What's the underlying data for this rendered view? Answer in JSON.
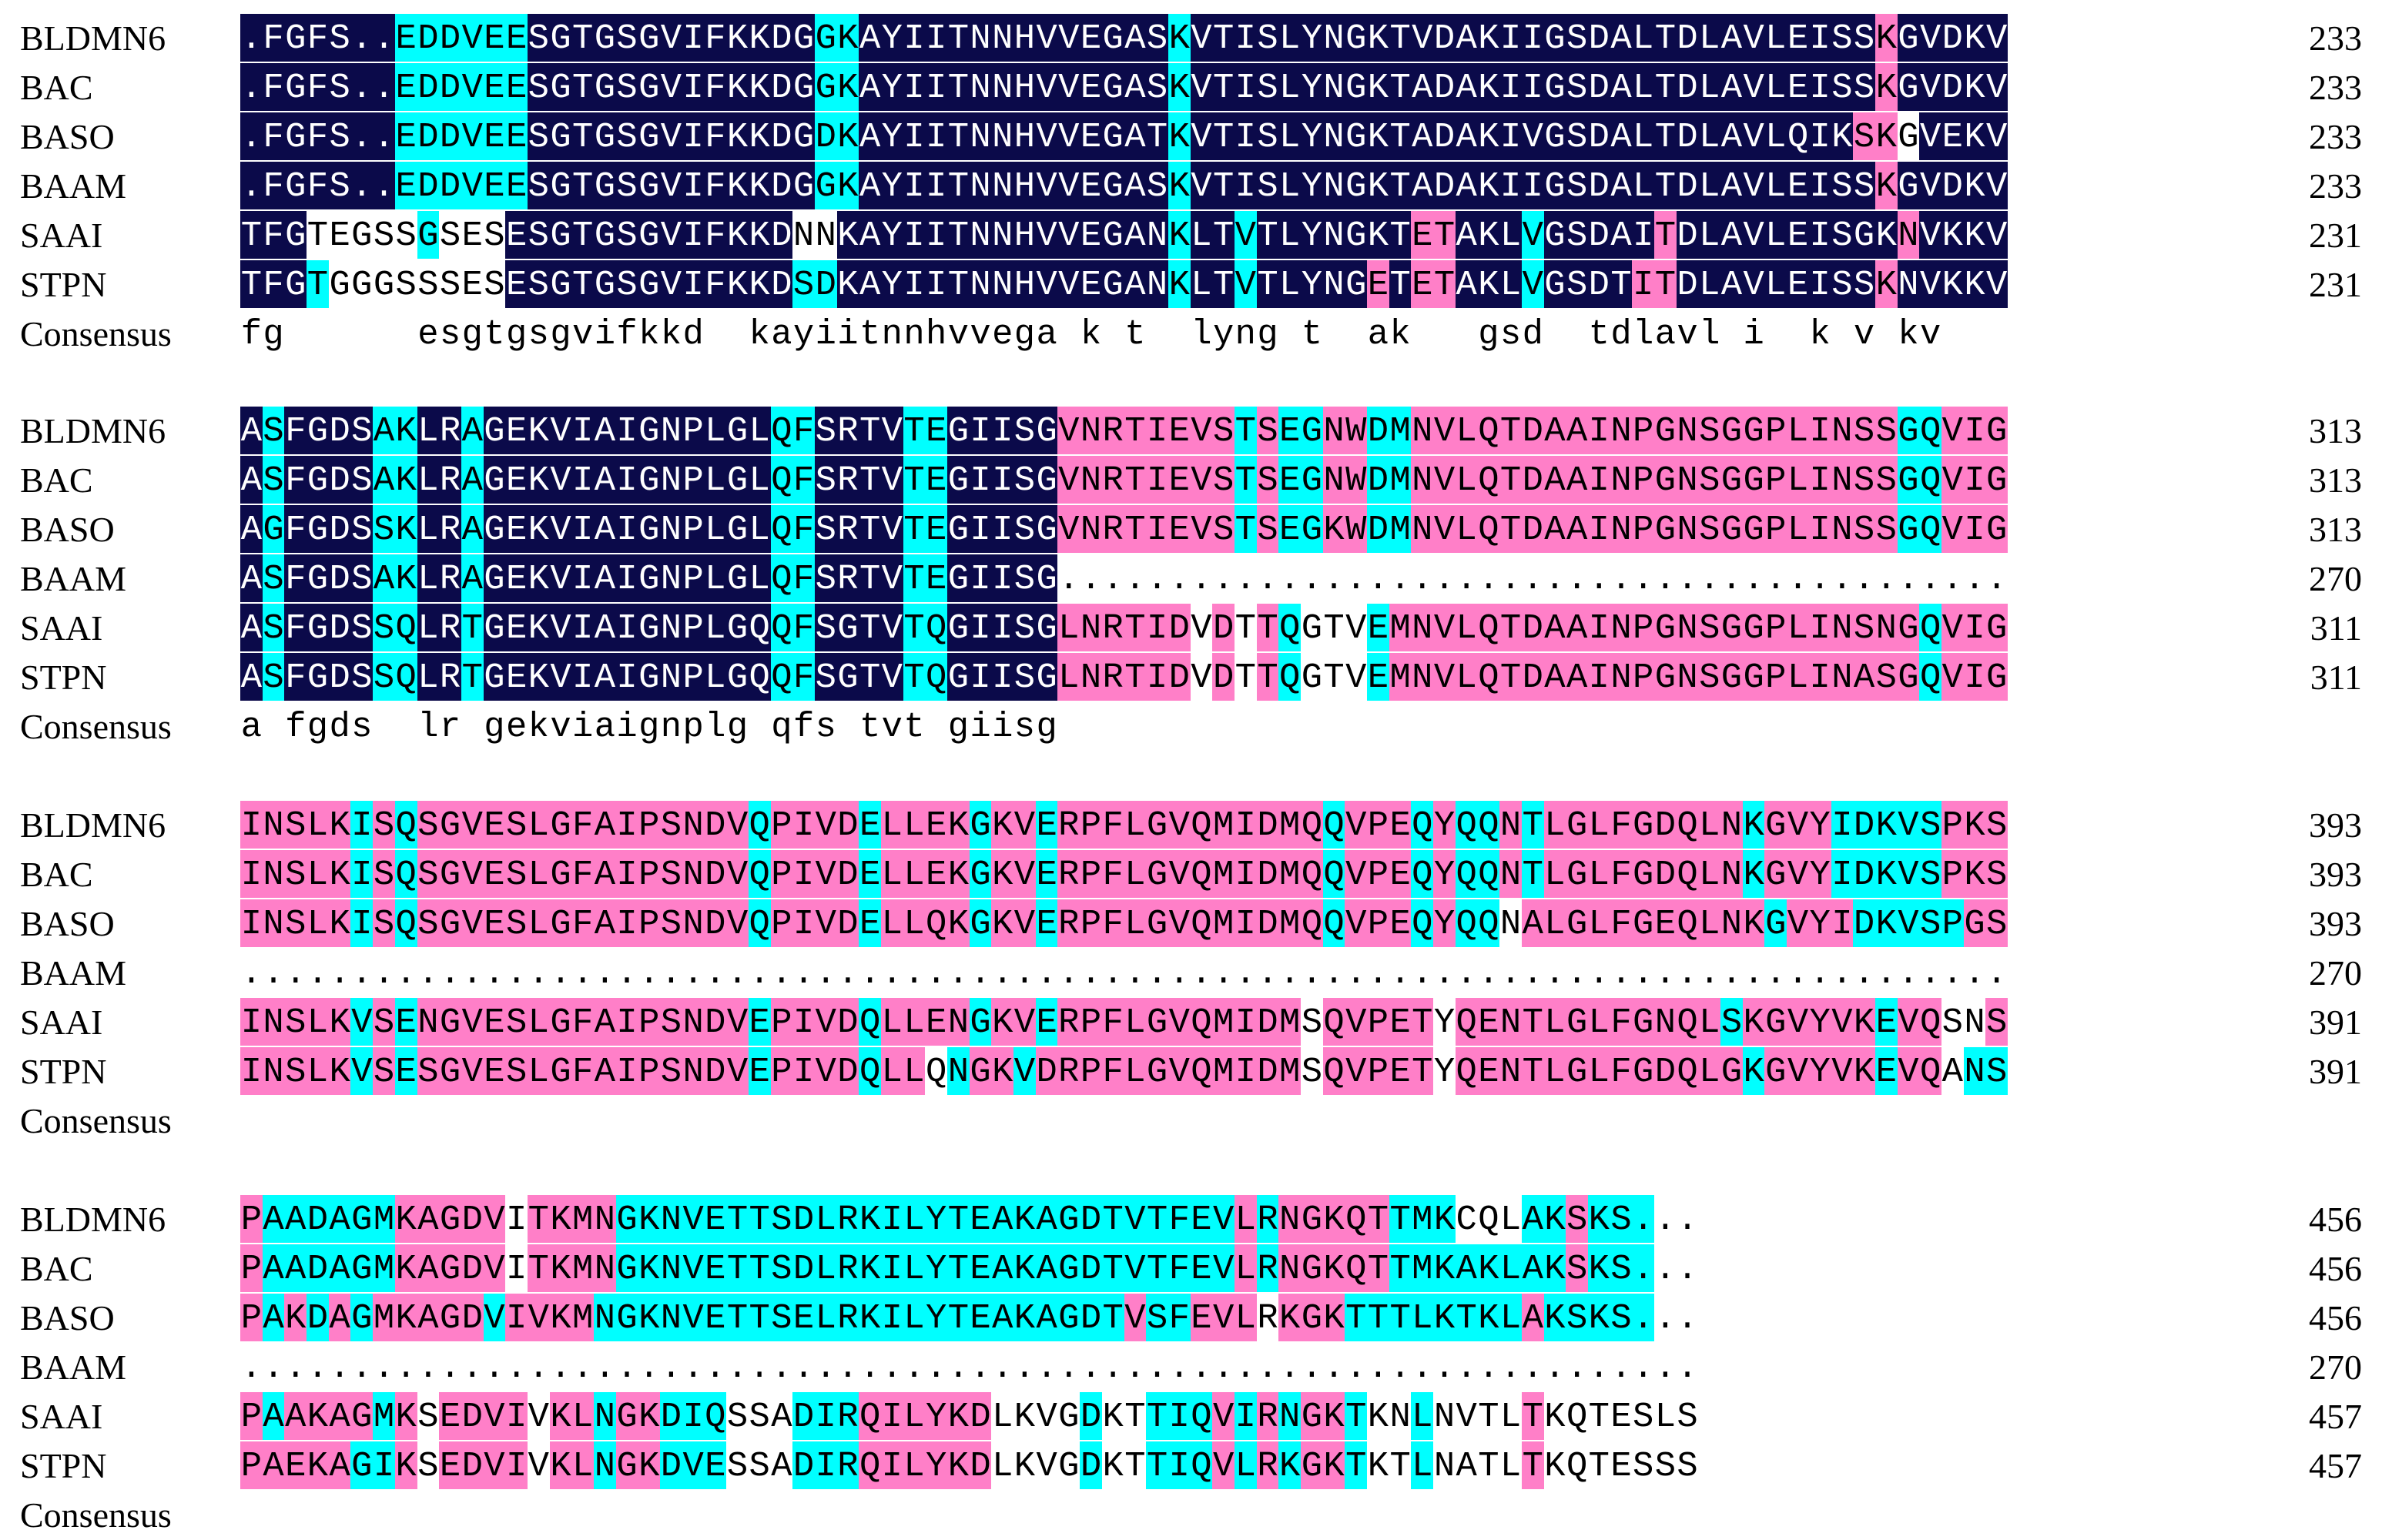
{
  "colors": {
    "identical": "#0b0a4a",
    "high": "#ff7fc8",
    "partial": "#00ffff",
    "none": "#ffffff"
  },
  "consensus_label": "Consensus",
  "blocks": [
    {
      "rows": [
        {
          "name": "BLDMN6",
          "seq": ".FGFS..EDDVEESGTGSGVIFKKDGGKAYIITNNHVVEGASKVTISLYNGKTVDAKIIGSDALTDLAVLEISSKGVDKV",
          "end": "233",
          "colors": "nnnnnnnccccccnnnnnnnnnnnnnccnnnnnnnnnnnnnncnnnnnnnnnnnnnnnnnnnnnnnnnnnnnnnpnnnnnn"
        },
        {
          "name": "BAC",
          "seq": ".FGFS..EDDVEESGTGSGVIFKKDGGKAYIITNNHVVEGASKVTISLYNGKTADAKIIGSDALTDLAVLEISSKGVDKV",
          "end": "233",
          "colors": "nnnnnnnccccccnnnnnnnnnnnnnccnnnnnnnnnnnnnncnnnnnnnnnnnnnnnnnnnnnnnnnnnnnnnpnnnnnn"
        },
        {
          "name": "BASO",
          "seq": ".FGFS..EDDVEESGTGSGVIFKKDGDKAYIITNNHVVEGATKVTISLYNGKTADAKIVGSDALTDLAVLQIKSKGVEKV",
          "end": "233",
          "colors": "nnnnnnnccccccnnnnnnnnnnnnnccnnnnnnnnnnnnnncnnnnnnnnnnnnnnnnnnnnnnnnnnnnnnppwnnnnnn"
        },
        {
          "name": "BAAM",
          "seq": ".FGFS..EDDVEESGTGSGVIFKKDGGKAYIITNNHVVEGASKVTISLYNGKTADAKIIGSDALTDLAVLEISSKGVDKV",
          "end": "233",
          "colors": "nnnnnnnccccccnnnnnnnnnnnnnccnnnnnnnnnnnnnncnnnnnnnnnnnnnnnnnnnnnnnnnnnnnnnpnnnnnn"
        },
        {
          "name": "SAAI",
          "seq": "TFGTEGSSGSESESGTGSGVIFKKDNNKAYIITNNHVVEGANKLTVTLYNGKTETAKLVGSDAITDLAVLEISGKNVKKV",
          "end": "231",
          "colors": "nnnwwwwwcwwwnnnnnnnnnnnnnwwnnnnnnnnnnnnnnncnncnnnnnnnppnnncnnnnnpnnnnnnnnnnpnnnnn"
        },
        {
          "name": "STPN",
          "seq": "TFGTGGGSSSESESGTGSGVIFKKDSDKAYIITNNHVVEGANKLTVTLYNGETETAKLVGSDTITDLAVLEISSKNVKKV",
          "end": "231",
          "colors": "nnncwwwwwwwwnnnnnnnnnnnnnccnnnnnnnnnnnnnnncnncnnnnnpnppnnncnnnnppnnnnnnnnnpnnnnnn"
        }
      ],
      "consensus": "fg      esgtgsgvifkkd  kayiitnnhvvega k t  lyng t  ak   gsd  tdlavl i  k v kv"
    },
    {
      "rows": [
        {
          "name": "BLDMN6",
          "seq": "ASFGDSAKLRAGEKVIAIGNPLGLQFSRTVTEGIISGVNRTIEVSTSEGNWDMNVLQTDAAINPGNSGGPLINSSGQVIG",
          "end": "313",
          "colors": "ncnnnnccnncnnnnnnnnnnnnnccnnnnccnnnnnppppppppcpccppccppppppppppppppppppppppccpppp"
        },
        {
          "name": "BAC",
          "seq": "ASFGDSAKLRAGEKVIAIGNPLGLQFSRTVTEGIISGVNRTIEVSTSEGNWDMNVLQTDAAINPGNSGGPLINSSGQVIG",
          "end": "313",
          "colors": "ncnnnnccnncnnnnnnnnnnnnnccnnnnccnnnnnppppppppcpccppccppppppppppppppppppppppccpppp"
        },
        {
          "name": "BASO",
          "seq": "AGFGDSSKLRAGEKVIAIGNPLGLQFSRTVTEGIISGVNRTIEVSTSEGKWDMNVLQTDAAINPGNSGGPLINSSGQVIG",
          "end": "313",
          "colors": "ncnnnnccnncnnnnnnnnnnnnnccnnnnccnnnnnppppppppcpccppccppppppppppppppppppppppccpppp"
        },
        {
          "name": "BAAM",
          "seq": "ASFGDSAKLRAGEKVIAIGNPLGLQFSRTVTEGIISG...........................................",
          "end": "270",
          "colors": "ncnnnnccnncnnnnnnnnnnnnnccnnnnccnnnnnwwwwwwwwwwwwwwwwwwwwwwwwwwwwwwwwwwwwwwwwwwww"
        },
        {
          "name": "SAAI",
          "seq": "ASFGDSSQLRTGEKVIAIGNPLGQQFSGTVTQGIISGLNRTIDVDTTQGTVEMNVLQTDAAINPGNSGGPLINSNGQVIG",
          "end": "311",
          "colors": "ncnnnnccnncnnnnnnnnnnnnnccnnnnccnnnnnppppppwpwpcwwwcppppppppppppppppppppppppcpppp"
        },
        {
          "name": "STPN",
          "seq": "ASFGDSSQLRTGEKVIAIGNPLGQQFSGTVTQGIISGLNRTIDVDTTQGTVEMNVLQTDAAINPGNSGGPLINASGQVIG",
          "end": "311",
          "colors": "ncnnnnccnncnnnnnnnnnnnnnccnnnnccnnnnnppppppwpwpcwwwcppppppppppppppppppppppppcpppp"
        }
      ],
      "consensus": "a fgds  lr gekviaignplg qfs tvt giisg"
    },
    {
      "rows": [
        {
          "name": "BLDMN6",
          "seq": "INSLKISQSGVESLGFAIPSNDVQPIVDELLEKGKVERPFLGVQMIDMQQVPEQYQQNTLGLFGDQLNKGVYIDKVSPKS",
          "end": "393",
          "colors": "pppppcpcpppppppppppppppcppppcppppcppcppppppppppppcpppcpccpcpppppppppcpppcccccpppp"
        },
        {
          "name": "BAC",
          "seq": "INSLKISQSGVESLGFAIPSNDVQPIVDELLEKGKVERPFLGVQMIDMQQVPEQYQQNTLGLFGDQLNKGVYIDKVSPKS",
          "end": "393",
          "colors": "pppppcpcpppppppppppppppcppppcppppcppcppppppppppppcpppcpccpcpppppppppcpppcccccpppp"
        },
        {
          "name": "BASO",
          "seq": "INSLKISQSGVESLGFAIPSNDVQPIVDELLQKGKVERPFLGVQMIDMQQVPEQYQQNALGLFGEQLNKGVYIDKVSPGS",
          "end": "393",
          "colors": "pppppcpcpppppppppppppppcppppcppppcppcppppppppppppcpppcpccwpppppppppppcpppcccccpppp"
        },
        {
          "name": "BAAM",
          "seq": "................................................................................",
          "end": "270",
          "colors": "wwwwwwwwwwwwwwwwwwwwwwwwwwwwwwwwwwwwwwwwwwwwwwwwwwwwwwwwwwwwwwwwwwwwwwwwwwwwwwww"
        },
        {
          "name": "SAAI",
          "seq": "INSLKVSENGVESLGFAIPSNDVEPIVDQLLENGKVERPFLGVQMIDMSQVPETYQENTLGLFGNQLSKGVYVKEVQSNS",
          "end": "391",
          "colors": "pppppcpcpppppppppppppppcppppcppppcppcpppppppppppwpppppwppppppppppppcppppppcppwwppp"
        },
        {
          "name": "STPN",
          "seq": "INSLKVSESGVESLGFAIPSNDVEPIVDQLLQNGKVDRPFLGVQMIDMSQVPETYQENTLGLFGDQLGKGVYVKEVQANS",
          "end": "391",
          "colors": "pppppcpcpppppppppppppppcppppcppwcppcppppppppppppwpppppwpppppppppppppcpppppcppwccpp"
        }
      ],
      "consensus": ""
    },
    {
      "rows": [
        {
          "name": "BLDMN6",
          "seq": "PAADAGMKAGDVITKMNGKNVETTSDLRKILYTEAKAGDTVTFEVLRNGKQTTMKCQLAKSKS...",
          "end": "456",
          "colors": "pccccccpppppwppppccccccccccccccccccccccccccccpcpppppcccwwwccpcccwww"
        },
        {
          "name": "BAC",
          "seq": "PAADAGMKAGDVITKMNGKNVETTSDLRKILYTEAKAGDTVTFEVLRNGKQTTMKAKLAKSKS...",
          "end": "456",
          "colors": "pccccccpppppwppppccccccccccccccccccccccccccccpcpppppccccccccpcccwww"
        },
        {
          "name": "BASO",
          "seq": "PAKDAGMKAGDVIVKMNGKNVETTSELRKILYTEAKAGDTVSFEVLRKGKTTTLKTKLAKSKS...",
          "end": "456",
          "colors": "pcpcpcpppppcppppccccccccccccccccccccccccpccpppwpppccccccccpcccccwww"
        },
        {
          "name": "BAAM",
          "seq": "..................................................................",
          "end": "270",
          "colors": "wwwwwwwwwwwwwwwwwwwwwwwwwwwwwwwwwwwwwwwwwwwwwwwwwwwwwwwwwwwwwwwwww"
        },
        {
          "name": "SAAI",
          "seq": "PAAKAGMKSEDVIVKLNGKDIQSSADIRQILYKDLKVGDKTTIQVIRNGKTKNLNVTLTKQTESLS",
          "end": "457",
          "colors": "pcppppcpwppppwppcppcccwwwcccppppppwwwwcwwcccpcpcppcwwcwwwwpwwwwwww"
        },
        {
          "name": "STPN",
          "seq": "PAEKAGIKSEDVIVKLNGKDVESSADIRQILYKDLKVGDKTTIQVLRKGKTKTLNATLTKQTESSS",
          "end": "457",
          "colors": "pppppccpwppppwppcppcccwwwcccppppppwwwwcwwcccpcpcppcwwcwwwwpwwwwwww"
        }
      ],
      "consensus": ""
    }
  ]
}
